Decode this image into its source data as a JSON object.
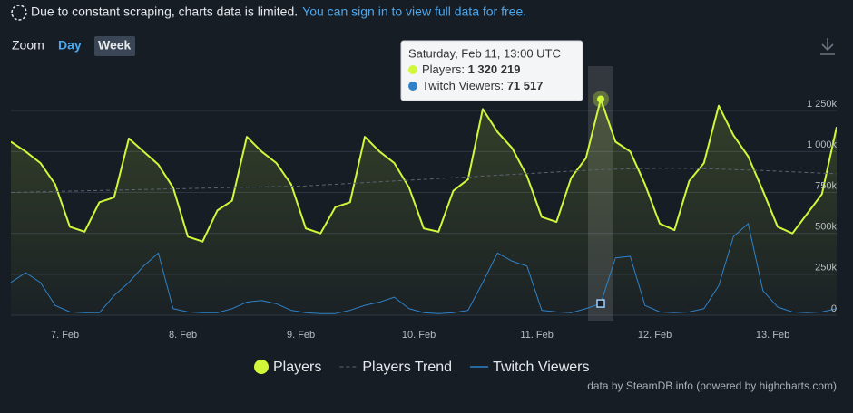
{
  "notice": {
    "text": "Due to constant scraping, charts data is limited.",
    "link": "You can sign in to view full data for free."
  },
  "zoom": {
    "label": "Zoom",
    "buttons": [
      "Day",
      "Week"
    ]
  },
  "tooltip": {
    "title": "Saturday, Feb 11, 13:00 UTC",
    "items": [
      {
        "label": "Players:",
        "value": "1 320 219"
      },
      {
        "label": "Twitch Viewers:",
        "value": "71 517"
      }
    ]
  },
  "credit": "data by SteamDB.info (powered by highcharts.com)",
  "chart_data": {
    "type": "line",
    "categories": [
      null,
      null,
      null,
      null,
      "7. Feb",
      null,
      null,
      null,
      null,
      null,
      null,
      null,
      "8. Feb",
      null,
      null,
      null,
      null,
      null,
      null,
      null,
      "9. Feb",
      null,
      null,
      null,
      null,
      null,
      null,
      null,
      "10. Feb",
      null,
      null,
      null,
      null,
      null,
      null,
      null,
      "11. Feb",
      null,
      null,
      null,
      null,
      null,
      null,
      null,
      "12. Feb",
      null,
      null,
      null,
      null,
      null,
      null,
      null,
      "13. Feb",
      null,
      null,
      null,
      null
    ],
    "series": [
      {
        "name": "Players",
        "color": "#d2f73a",
        "values": [
          1060000,
          1000000,
          930000,
          800000,
          540000,
          510000,
          690000,
          720000,
          1080000,
          1000000,
          920000,
          780000,
          480000,
          450000,
          640000,
          700000,
          1090000,
          1000000,
          930000,
          800000,
          530000,
          500000,
          660000,
          690000,
          1090000,
          1000000,
          930000,
          780000,
          530000,
          510000,
          760000,
          830000,
          1260000,
          1120000,
          1020000,
          850000,
          600000,
          570000,
          840000,
          960000,
          1320219,
          1060000,
          1000000,
          800000,
          560000,
          520000,
          820000,
          930000,
          1280000,
          1100000,
          970000,
          760000,
          540000,
          500000,
          620000,
          740000,
          1150000
        ]
      },
      {
        "name": "Players Trend",
        "color": "#5b6470",
        "dashed": true,
        "values": [
          750000,
          752000,
          754000,
          756000,
          758000,
          760000,
          762000,
          764000,
          766000,
          768000,
          770000,
          772000,
          774000,
          776000,
          778000,
          780000,
          782000,
          784000,
          786000,
          788000,
          790000,
          795000,
          800000,
          805000,
          810000,
          815000,
          820000,
          825000,
          830000,
          835000,
          840000,
          845000,
          850000,
          855000,
          860000,
          865000,
          870000,
          875000,
          880000,
          885000,
          890000,
          892000,
          894000,
          896000,
          898000,
          898000,
          897000,
          895000,
          893000,
          890000,
          887000,
          884000,
          880000,
          876000,
          872000,
          868000,
          864000
        ]
      },
      {
        "name": "Twitch Viewers",
        "color": "#2f82c8",
        "values": [
          200000,
          260000,
          200000,
          60000,
          20000,
          15000,
          15000,
          120000,
          200000,
          300000,
          380000,
          40000,
          20000,
          15000,
          15000,
          40000,
          80000,
          90000,
          70000,
          30000,
          15000,
          10000,
          10000,
          30000,
          60000,
          80000,
          110000,
          40000,
          15000,
          10000,
          15000,
          30000,
          200000,
          380000,
          330000,
          300000,
          30000,
          20000,
          15000,
          40000,
          71517,
          350000,
          360000,
          60000,
          20000,
          15000,
          20000,
          40000,
          180000,
          480000,
          560000,
          150000,
          50000,
          20000,
          15000,
          20000,
          40000
        ]
      }
    ],
    "ylim": [
      0,
      1500000
    ],
    "yticks": [
      0,
      {
        "value": 250000,
        "label": "250k"
      },
      {
        "value": 500000,
        "label": "500k"
      },
      {
        "value": 750000,
        "label": "750k"
      },
      {
        "value": 1000000,
        "label": "1 000k"
      },
      {
        "value": 1250000,
        "label": "1 250k"
      }
    ],
    "grid": true
  }
}
